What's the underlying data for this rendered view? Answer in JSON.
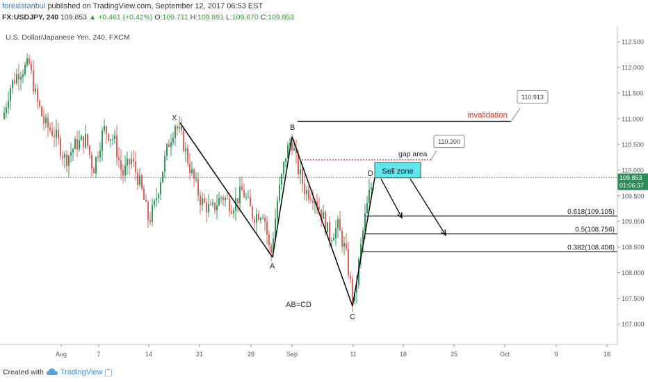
{
  "header": {
    "author": "forexistanbul",
    "published_text": "published on TradingView.com, September 12, 2017 06:53 EST",
    "symbol": "FX:USDJPY, 240",
    "last": "109.853",
    "change": "▲ +0.461 (+0.42%)",
    "o_label": "O:",
    "o_value": "109.711",
    "h_label": "H:",
    "h_value": "109.891",
    "l_label": "L:",
    "l_value": "109.670",
    "c_label": "C:",
    "c_value": "109.853"
  },
  "footer": {
    "created_with": "Created with",
    "brand": "TradingView"
  },
  "colors": {
    "up": "#2f9a5c",
    "down": "#e0625a",
    "price_line": "#2e8b57",
    "invalidation": "#d9342b",
    "sell_zone_fill": "#61e6ec",
    "accent": "#3a78c2"
  },
  "chart_data": {
    "type": "candlestick",
    "title": "U.S. Dollar/Japanese Yen, 240, FXCM",
    "ylim": [
      106.6,
      112.8
    ],
    "y_ticks": [
      "107.000",
      "107.500",
      "108.000",
      "108.500",
      "109.000",
      "109.500",
      "110.000",
      "110.500",
      "111.000",
      "111.500",
      "112.000",
      "112.500"
    ],
    "x_ticks": [
      "Aug",
      "7",
      "14",
      "21",
      "28",
      "Sep",
      "11",
      "18",
      "25",
      "Oct",
      "9",
      "16"
    ],
    "current_price": "109.853",
    "countdown": "01:06:37",
    "price_path": [
      {
        "label": "",
        "x": 0,
        "y": 111.0
      },
      {
        "label": "",
        "x": 10,
        "y": 111.6
      },
      {
        "label": "",
        "x": 22,
        "y": 111.9
      },
      {
        "label": "",
        "x": 38,
        "y": 112.05
      },
      {
        "label": "",
        "x": 48,
        "y": 111.4
      },
      {
        "label": "",
        "x": 60,
        "y": 110.9
      },
      {
        "label": "",
        "x": 75,
        "y": 110.7
      },
      {
        "label": "",
        "x": 90,
        "y": 110.2
      },
      {
        "label": "",
        "x": 105,
        "y": 110.5
      },
      {
        "label": "",
        "x": 120,
        "y": 110.6
      },
      {
        "label": "",
        "x": 130,
        "y": 110.0
      },
      {
        "label": "",
        "x": 145,
        "y": 110.8
      },
      {
        "label": "",
        "x": 160,
        "y": 110.6
      },
      {
        "label": "",
        "x": 172,
        "y": 109.9
      },
      {
        "label": "",
        "x": 185,
        "y": 110.2
      },
      {
        "label": "",
        "x": 198,
        "y": 109.7
      },
      {
        "label": "",
        "x": 210,
        "y": 109.0
      },
      {
        "label": "",
        "x": 218,
        "y": 109.3
      },
      {
        "label": "",
        "x": 228,
        "y": 109.9
      },
      {
        "label": "",
        "x": 238,
        "y": 110.5
      },
      {
        "label": "",
        "x": 248,
        "y": 110.9
      },
      {
        "label": "",
        "x": 258,
        "y": 110.6
      },
      {
        "label": "",
        "x": 270,
        "y": 110.0
      },
      {
        "label": "",
        "x": 285,
        "y": 109.4
      },
      {
        "label": "",
        "x": 300,
        "y": 109.2
      },
      {
        "label": "",
        "x": 315,
        "y": 109.5
      },
      {
        "label": "",
        "x": 330,
        "y": 109.3
      },
      {
        "label": "",
        "x": 345,
        "y": 109.6
      },
      {
        "label": "",
        "x": 360,
        "y": 109.1
      },
      {
        "label": "",
        "x": 375,
        "y": 109.2
      },
      {
        "label": "",
        "x": 385,
        "y": 108.3
      },
      {
        "label": "",
        "x": 395,
        "y": 109.4
      },
      {
        "label": "",
        "x": 407,
        "y": 110.3
      },
      {
        "label": "",
        "x": 415,
        "y": 110.6
      },
      {
        "label": "",
        "x": 425,
        "y": 110.0
      },
      {
        "label": "",
        "x": 435,
        "y": 109.6
      },
      {
        "label": "",
        "x": 448,
        "y": 109.5
      },
      {
        "label": "",
        "x": 460,
        "y": 109.1
      },
      {
        "label": "",
        "x": 470,
        "y": 108.7
      },
      {
        "label": "",
        "x": 482,
        "y": 108.9
      },
      {
        "label": "",
        "x": 493,
        "y": 108.4
      },
      {
        "label": "",
        "x": 505,
        "y": 107.35
      },
      {
        "label": "",
        "x": 513,
        "y": 108.3
      },
      {
        "label": "",
        "x": 520,
        "y": 109.0
      },
      {
        "label": "",
        "x": 528,
        "y": 109.6
      },
      {
        "label": "",
        "x": 535,
        "y": 109.85
      }
    ],
    "pattern_points": [
      {
        "label": "X",
        "x": 255,
        "y": 110.92
      },
      {
        "label": "A",
        "x": 388,
        "y": 108.3
      },
      {
        "label": "B",
        "x": 416,
        "y": 110.65
      },
      {
        "label": "C",
        "x": 503,
        "y": 107.35
      },
      {
        "label": "D",
        "x": 535,
        "y": 109.85
      }
    ],
    "levels": [
      {
        "label": "0.618(109.105)",
        "value": 109.105,
        "x_start": 522
      },
      {
        "label": "0.5(108.756)",
        "value": 108.756,
        "x_start": 522
      },
      {
        "label": "0.382(108.406)",
        "value": 108.406,
        "x_start": 516
      }
    ],
    "invalidation": {
      "label": "invalidation",
      "value": 110.95,
      "callout": "110.913"
    },
    "gap": {
      "label": "gap area",
      "value": 110.2,
      "callout": "110.200"
    },
    "sell_zone": {
      "label": "Sell  zone",
      "y_top": 110.15,
      "y_bottom": 109.85
    },
    "annotation": "AB=CD"
  }
}
